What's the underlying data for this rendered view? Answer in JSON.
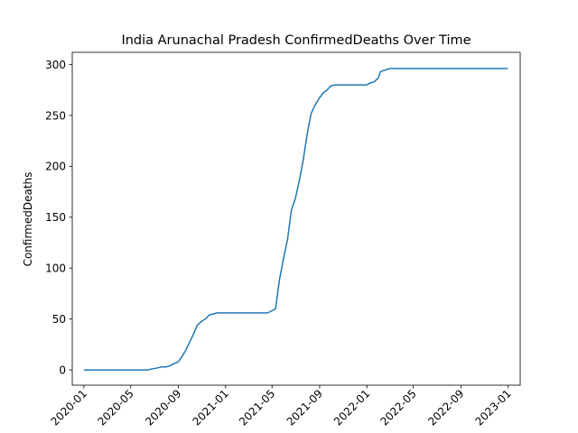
{
  "chart_data": {
    "type": "line",
    "title": "India Arunachal Pradesh ConfirmedDeaths Over Time",
    "xlabel": "",
    "ylabel": "ConfirmedDeaths",
    "xlim": [
      "2019-12-02",
      "2023-02-01"
    ],
    "ylim": [
      -15,
      312
    ],
    "grid": false,
    "x_ticks": [
      "2020-01",
      "2020-05",
      "2020-09",
      "2021-01",
      "2021-05",
      "2021-09",
      "2022-01",
      "2022-05",
      "2022-09",
      "2023-01"
    ],
    "y_ticks": [
      0,
      50,
      100,
      150,
      200,
      250,
      300
    ],
    "series": [
      {
        "color": "#1f77b4",
        "x": [
          "2020-01-01",
          "2020-06-15",
          "2020-06-25",
          "2020-07-10",
          "2020-07-20",
          "2020-08-01",
          "2020-08-10",
          "2020-08-20",
          "2020-09-01",
          "2020-09-10",
          "2020-09-20",
          "2020-10-01",
          "2020-10-10",
          "2020-10-20",
          "2020-11-01",
          "2020-11-10",
          "2020-11-20",
          "2020-12-01",
          "2020-12-10",
          "2020-12-20",
          "2021-01-01",
          "2021-02-01",
          "2021-03-01",
          "2021-04-01",
          "2021-04-20",
          "2021-04-30",
          "2021-05-10",
          "2021-05-20",
          "2021-05-31",
          "2021-06-10",
          "2021-06-20",
          "2021-06-30",
          "2021-07-10",
          "2021-07-20",
          "2021-07-31",
          "2021-08-10",
          "2021-08-20",
          "2021-08-31",
          "2021-09-10",
          "2021-09-20",
          "2021-09-30",
          "2021-10-10",
          "2021-11-01",
          "2021-12-01",
          "2021-12-31",
          "2022-01-10",
          "2022-01-20",
          "2022-01-31",
          "2022-02-05",
          "2022-03-01",
          "2022-06-01",
          "2022-09-01",
          "2022-12-31"
        ],
        "y": [
          0,
          0,
          1,
          2,
          3,
          3,
          4,
          6,
          8,
          13,
          19,
          28,
          35,
          44,
          48,
          50,
          54,
          55,
          56,
          56,
          56,
          56,
          56,
          56,
          56,
          58,
          60,
          88,
          110,
          128,
          157,
          168,
          185,
          205,
          232,
          252,
          260,
          267,
          272,
          275,
          279,
          280,
          280,
          280,
          280,
          282,
          283,
          287,
          293,
          296,
          296,
          296,
          296
        ]
      }
    ]
  }
}
